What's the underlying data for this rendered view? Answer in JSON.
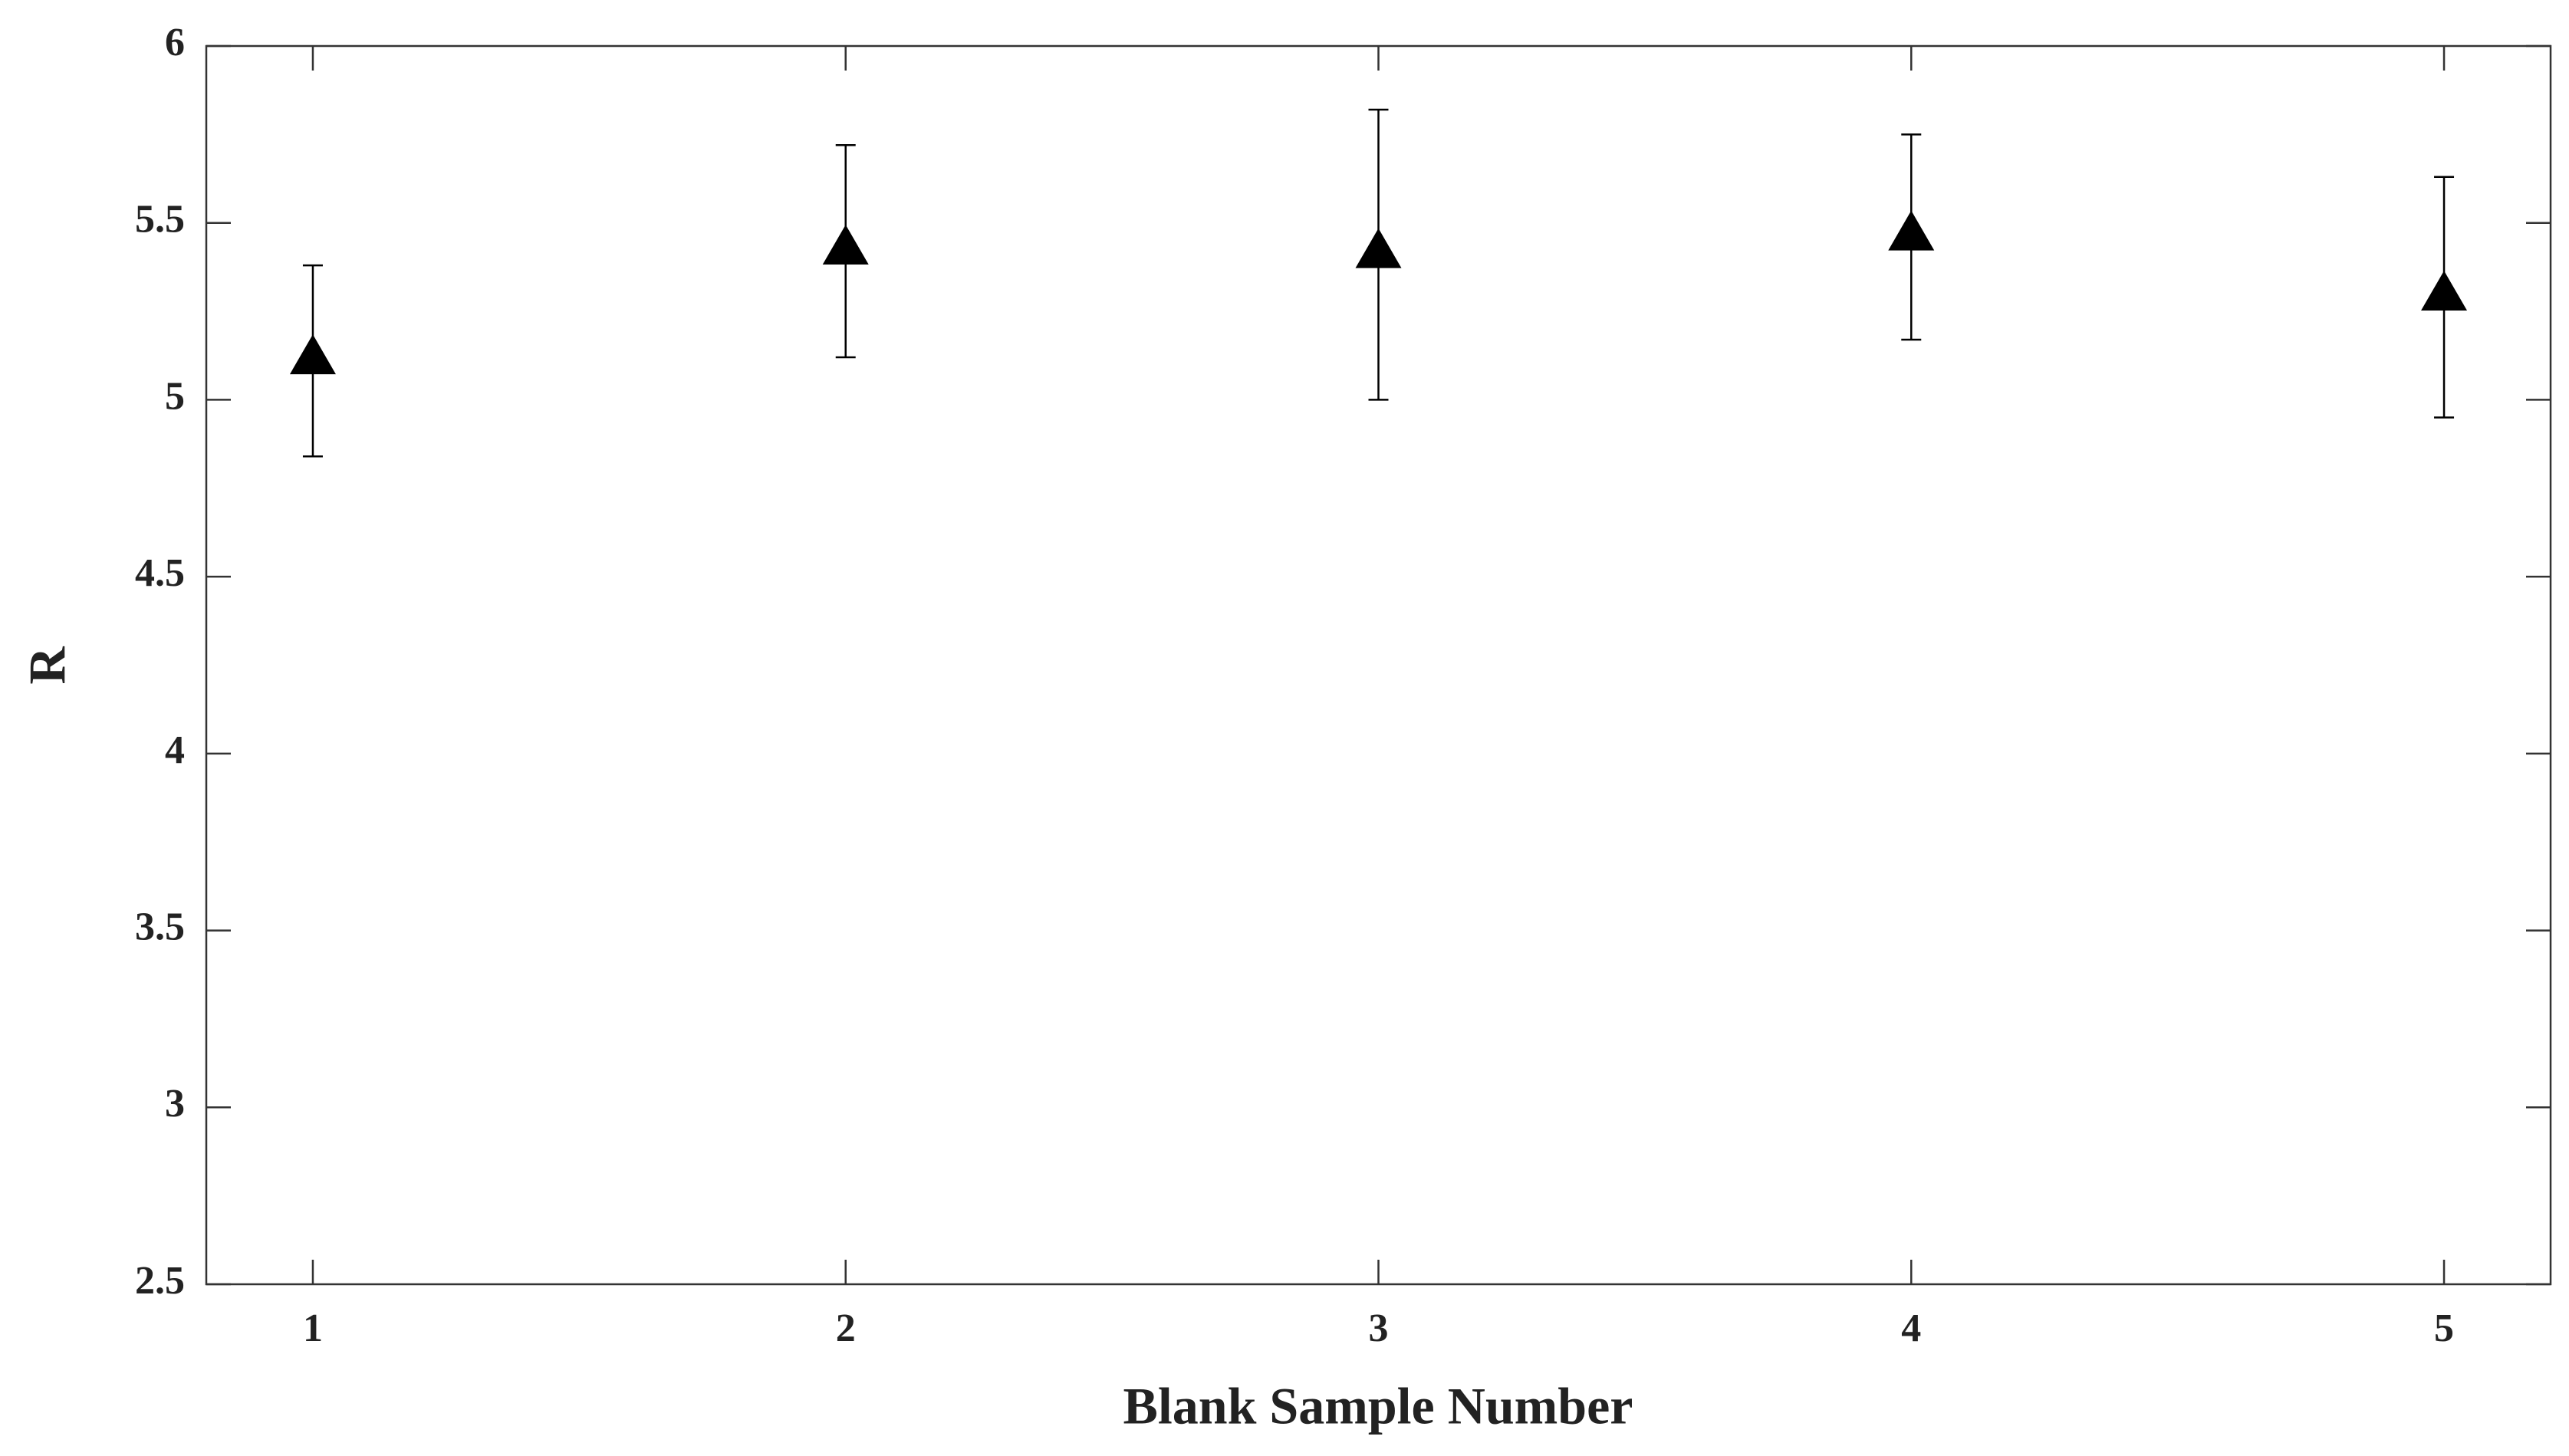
{
  "chart_data": {
    "type": "scatter",
    "x": [
      1,
      2,
      3,
      4,
      5
    ],
    "values": [
      5.11,
      5.42,
      5.41,
      5.46,
      5.29
    ],
    "errors": [
      0.27,
      0.3,
      0.41,
      0.29,
      0.34
    ],
    "xlim": [
      0.8,
      5.2
    ],
    "ylim": [
      2.5,
      6
    ],
    "xticks": [
      1,
      2,
      3,
      4,
      5
    ],
    "yticks": [
      2.5,
      3,
      3.5,
      4,
      4.5,
      5,
      5.5,
      6
    ],
    "xlabel": "Blank Sample Number",
    "ylabel": "R",
    "color": "#000000",
    "marker": "triangle",
    "grid": false
  }
}
